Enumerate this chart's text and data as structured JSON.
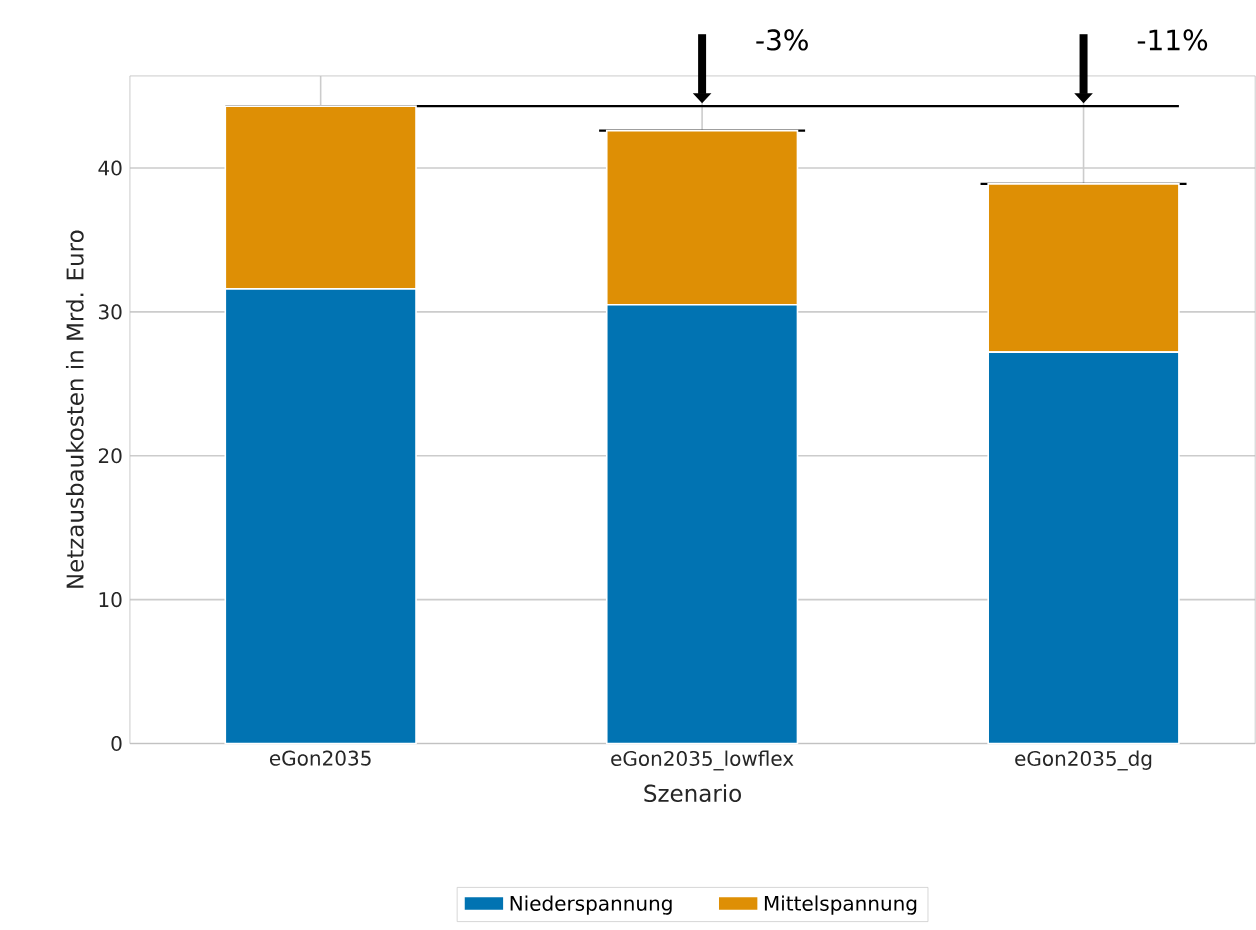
{
  "chart_data": {
    "type": "bar",
    "stacked": true,
    "categories": [
      "eGon2035",
      "eGon2035_lowflex",
      "eGon2035_dg"
    ],
    "series": [
      {
        "name": "Niederspannung",
        "color": "#0173b2",
        "values": [
          31.6,
          30.5,
          27.2
        ]
      },
      {
        "name": "Mittelspannung",
        "color": "#de8f05",
        "values": [
          12.7,
          12.1,
          11.7
        ]
      }
    ],
    "xlabel": "Szenario",
    "ylabel": "Netzausbaukosten in Mrd. Euro",
    "ylim": [
      0,
      46.4
    ],
    "yticks": [
      0,
      10,
      20,
      30,
      40
    ],
    "ref_lines": [
      {
        "axis": "y",
        "value": 44.3,
        "color": "#000000"
      },
      {
        "axis": "y",
        "value": 42.6,
        "color": "#000000"
      },
      {
        "axis": "y",
        "value": 38.9,
        "color": "#000000"
      }
    ],
    "annotations": [
      "-3%",
      "-11%"
    ],
    "grid": true,
    "legend": "bottom"
  }
}
